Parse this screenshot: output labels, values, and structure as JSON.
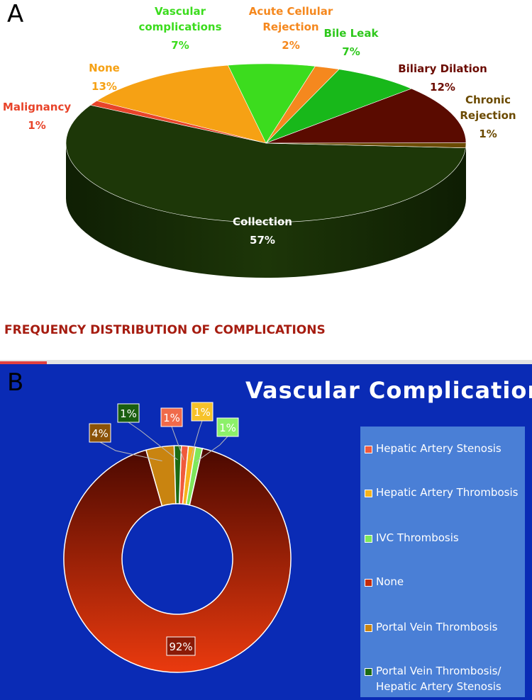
{
  "panels": {
    "a_label": "A",
    "b_label": "B"
  },
  "chart_data": [
    {
      "type": "pie",
      "style": "3d",
      "title": "FREQUENCY DISTRIBUTION OF  COMPLICATIONS",
      "slices": [
        {
          "label": "Collection",
          "value": 57,
          "value_label": "57%",
          "color": "#1d3708",
          "label_color": "#ffffff"
        },
        {
          "label": "Malignancy",
          "value": 1,
          "value_label": "1%",
          "color": "#e8442a",
          "label_color": "#e8442a"
        },
        {
          "label": "None",
          "value": 13,
          "value_label": "13%",
          "color": "#f6a114",
          "label_color": "#f6a114"
        },
        {
          "label": "Vascular complications",
          "value": 7,
          "value_label": "7%",
          "color": "#3cdc1e",
          "label_color": "#3cdc1e"
        },
        {
          "label": "Acute Cellular Rejection",
          "value": 2,
          "value_label": "2%",
          "color": "#f5881e",
          "label_color": "#f5881e"
        },
        {
          "label": "Bile Leak",
          "value": 7,
          "value_label": "7%",
          "color": "#18b81a",
          "label_color": "#2ec81c"
        },
        {
          "label": "Biliary Dilation",
          "value": 12,
          "value_label": "12%",
          "color": "#5a0b00",
          "label_color": "#6b0b00"
        },
        {
          "label": "Chronic Rejection",
          "value": 1,
          "value_label": "1%",
          "color": "#6b4a00",
          "label_color": "#6b4a00"
        }
      ]
    },
    {
      "type": "pie",
      "style": "donut",
      "title": "Vascular Complications",
      "legend_position": "right",
      "slices": [
        {
          "label": "Hepatic Artery Stenosis",
          "value": 1,
          "value_label": "1%",
          "color": "#f05a3c"
        },
        {
          "label": "Hepatic Artery Thrombosis",
          "value": 1,
          "value_label": "1%",
          "color": "#f6b31c"
        },
        {
          "label": "IVC Thrombosis",
          "value": 1,
          "value_label": "1%",
          "color": "#7ee85a"
        },
        {
          "label": "None",
          "value": 92,
          "value_label": "92%",
          "color": "#c42a08"
        },
        {
          "label": "Portal Vein Thrombosis",
          "value": 4,
          "value_label": "4%",
          "color": "#c98410"
        },
        {
          "label": "Portal Vein Thrombosis/ Hepatic Artery Stenosis",
          "value": 1,
          "value_label": "1%",
          "color": "#1c6a12"
        }
      ]
    }
  ]
}
